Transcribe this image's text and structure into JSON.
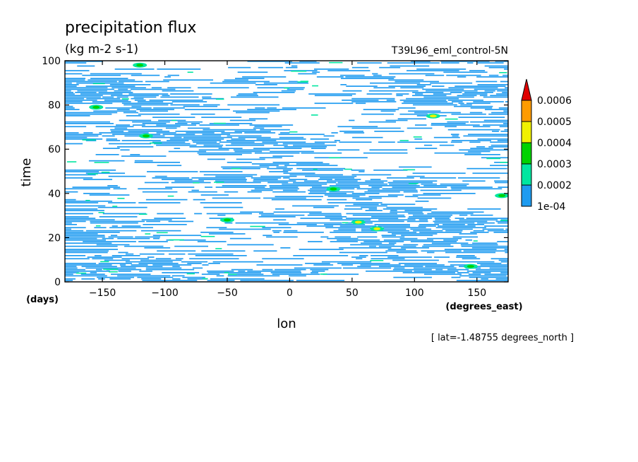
{
  "chart_data": {
    "type": "heatmap",
    "title": "precipitation flux",
    "units": "(kg m-2 s-1)",
    "run_name": "T39L96_eml_control-5N",
    "xlabel": "lon",
    "x_units": "(degrees_east)",
    "ylabel": "time",
    "y_units": "(days)",
    "xlim": [
      -180,
      175
    ],
    "ylim": [
      0,
      100
    ],
    "x_ticks": [
      -150,
      -100,
      -50,
      0,
      50,
      100,
      150
    ],
    "y_ticks": [
      0,
      20,
      40,
      60,
      80,
      100
    ],
    "x_tick_labels": [
      "−150",
      "−100",
      "−50",
      "0",
      "50",
      "100",
      "150"
    ],
    "y_tick_labels": [
      "0",
      "20",
      "40",
      "60",
      "80",
      "100"
    ],
    "footnote": "[ lat=-1.48755 degrees_north ]",
    "colorbar": {
      "levels": [
        "1e-04",
        "0.0002",
        "0.0003",
        "0.0004",
        "0.0005",
        "0.0006"
      ],
      "colors": [
        "#1e9bf0",
        "#00e6a0",
        "#00d200",
        "#f0f000",
        "#ff9b00",
        "#e00000"
      ]
    },
    "hotspots": [
      {
        "lon": -155,
        "time": 79,
        "level": 2
      },
      {
        "lon": -120,
        "time": 98,
        "level": 2
      },
      {
        "lon": -115,
        "time": 66,
        "level": 2
      },
      {
        "lon": 115,
        "time": 75,
        "level": 3
      },
      {
        "lon": 55,
        "time": 27,
        "level": 3
      },
      {
        "lon": 70,
        "time": 24,
        "level": 3
      },
      {
        "lon": 145,
        "time": 7,
        "level": 2
      },
      {
        "lon": -50,
        "time": 28,
        "level": 2
      },
      {
        "lon": 170,
        "time": 39,
        "level": 2
      },
      {
        "lon": 35,
        "time": 42,
        "level": 2
      }
    ]
  }
}
